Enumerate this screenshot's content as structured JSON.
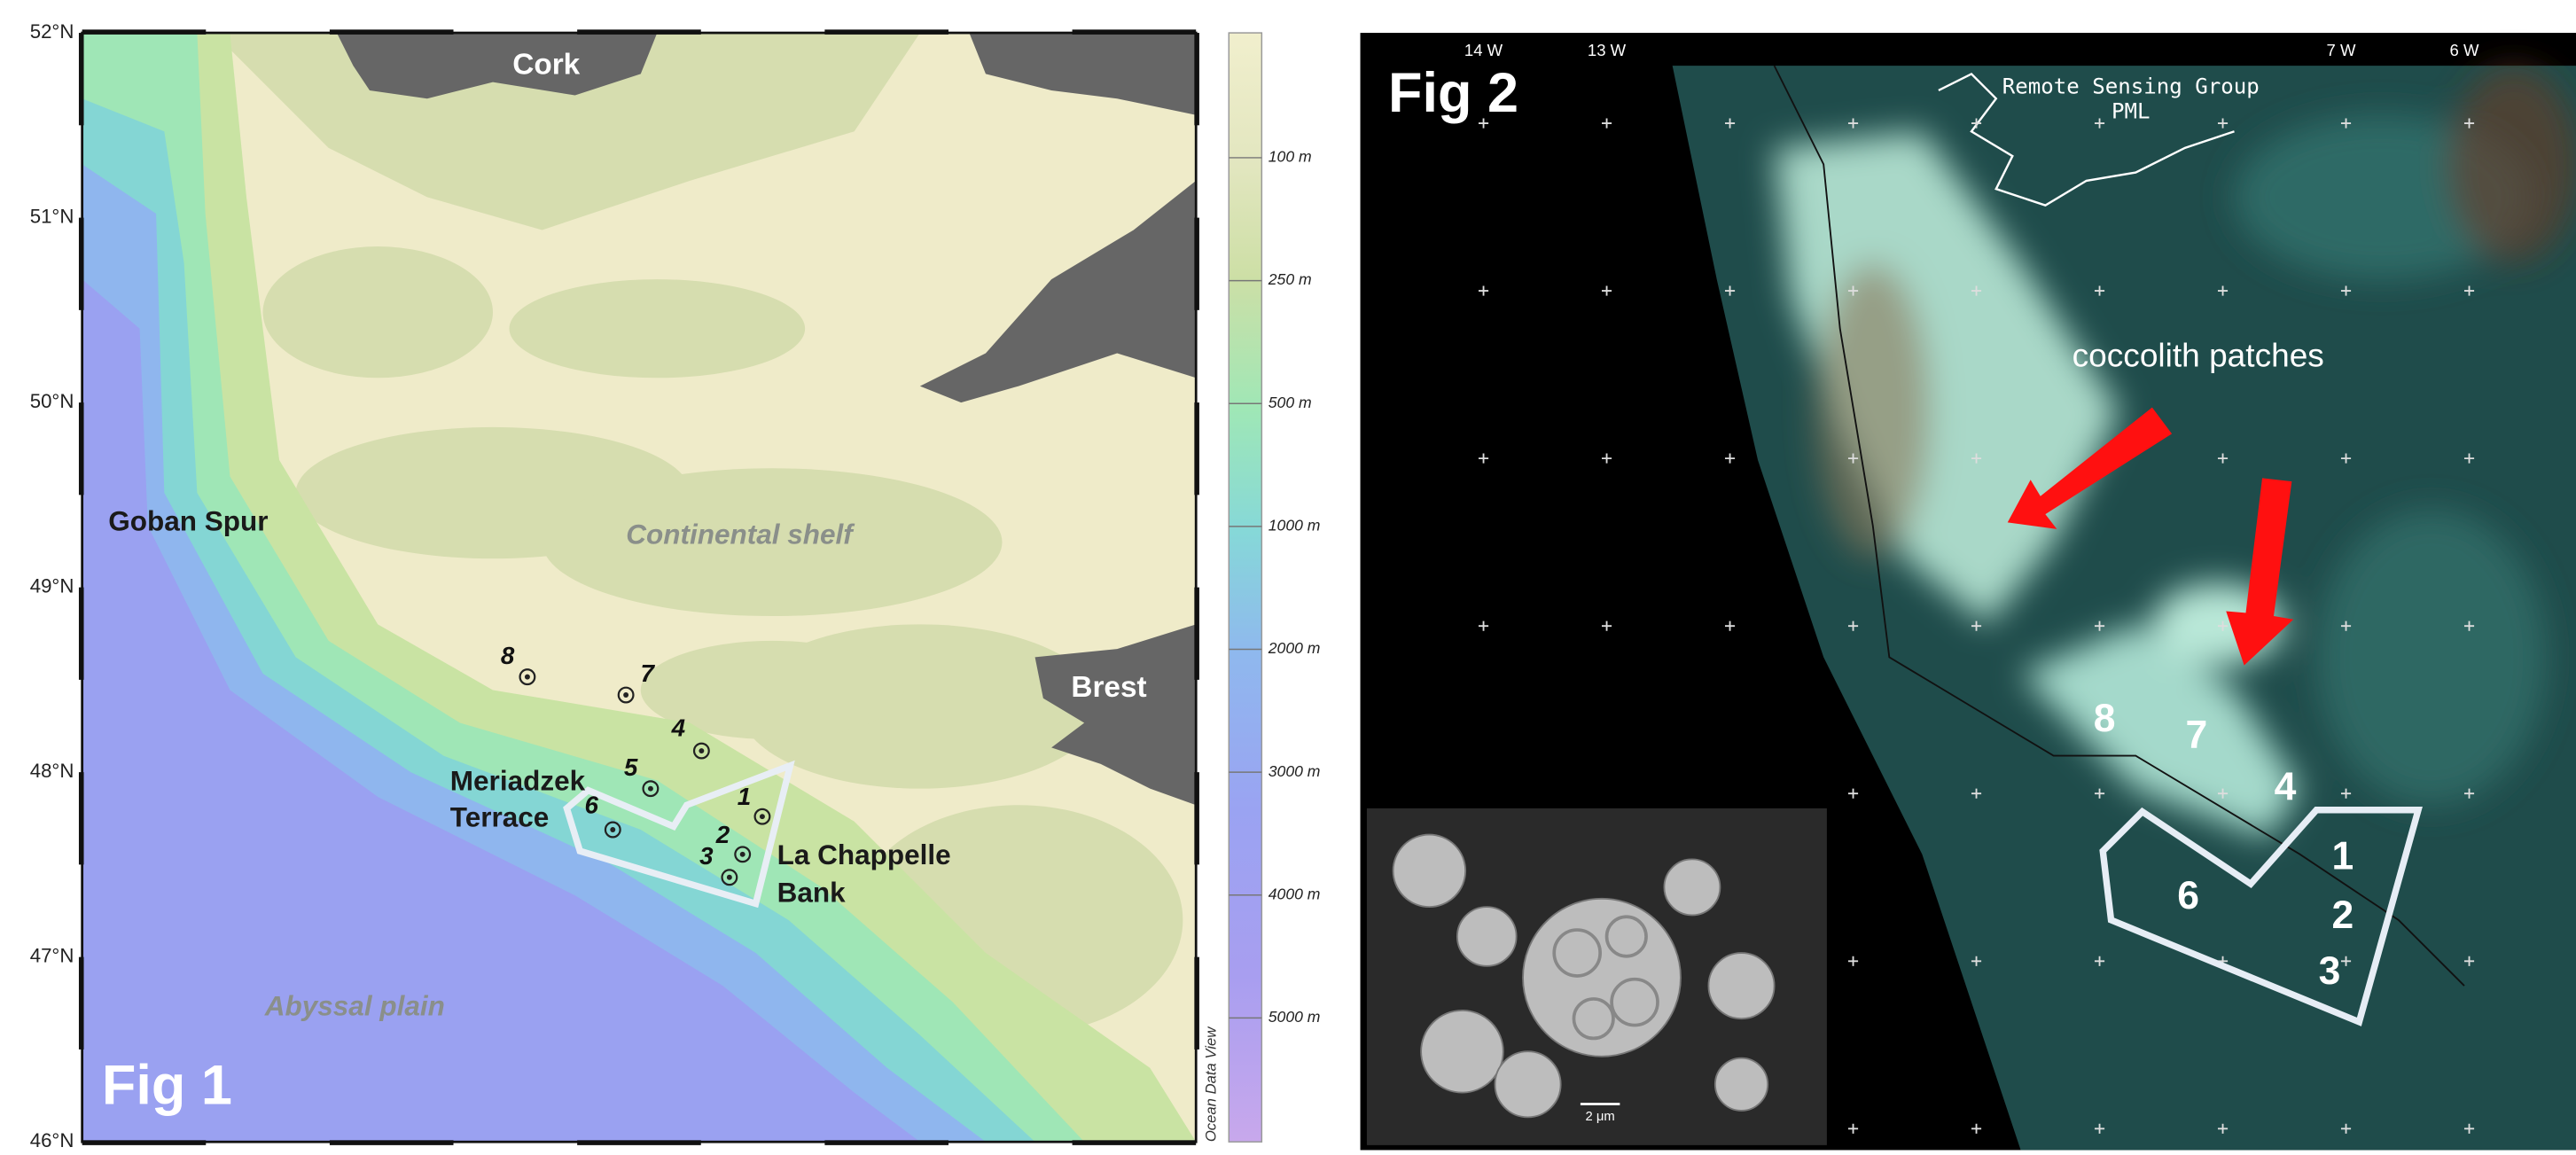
{
  "fig1": {
    "label": "Fig 1",
    "lat_labels": [
      "52°N",
      "51°N",
      "50°N",
      "49°N",
      "48°N",
      "47°N",
      "46°N"
    ],
    "depth_labels": [
      "100 m",
      "250 m",
      "500 m",
      "1000 m",
      "2000 m",
      "3000 m",
      "4000 m",
      "5000 m"
    ],
    "credit": "Ocean Data View",
    "places": [
      "Cork",
      "Brest",
      "Goban Spur",
      "Continental shelf",
      "Abyssal plain",
      "Meriadzek",
      "Terrace",
      "La Chappelle",
      "Bank"
    ],
    "stations": [
      "8",
      "7",
      "4",
      "5",
      "1",
      "6",
      "2",
      "3"
    ]
  },
  "fig2": {
    "label": "Fig 2",
    "lon_labels": [
      "14 W",
      "13 W",
      "7 W",
      "6 W"
    ],
    "credit": [
      "Remote Sensing Group",
      "PML"
    ],
    "annotation": "coccolith patches",
    "stations": [
      "8",
      "7",
      "4",
      "1",
      "6",
      "2",
      "3"
    ],
    "scale_bar": "2 μm"
  }
}
